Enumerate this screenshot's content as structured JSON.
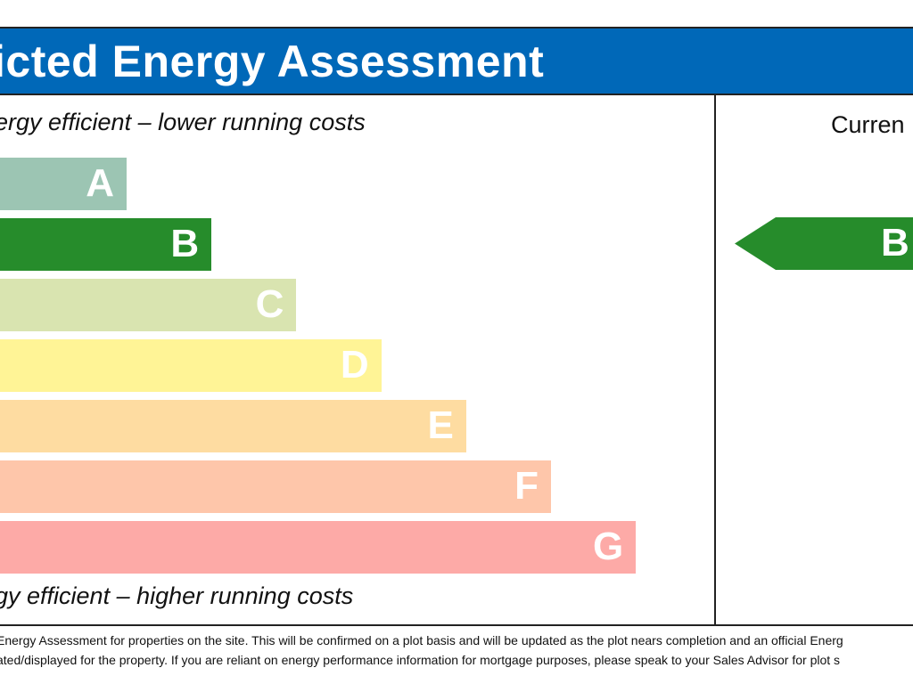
{
  "header": {
    "title": "icted Energy Assessment"
  },
  "captions": {
    "top": "ergy efficient – lower running costs",
    "bottom": "gy efficient – higher running costs"
  },
  "column_header": "Curren",
  "chart_data": {
    "type": "bar",
    "categories": [
      "A",
      "B",
      "C",
      "D",
      "E",
      "F",
      "G"
    ],
    "colors": [
      "#9cc5b3",
      "#268c2b",
      "#d9e4b0",
      "#fff496",
      "#fedca1",
      "#fec6aa",
      "#fdaaa7"
    ],
    "current_rating": {
      "label": "B",
      "color": "#268c2b"
    }
  },
  "footnote": {
    "line1": "Energy Assessment for properties on the site. This will be confirmed on a plot basis and will be updated as the plot nears completion and an official Energ",
    "line2": "ated/displayed for the property. If you are reliant on energy performance information for mortgage purposes, please speak to your Sales Advisor for plot s"
  }
}
